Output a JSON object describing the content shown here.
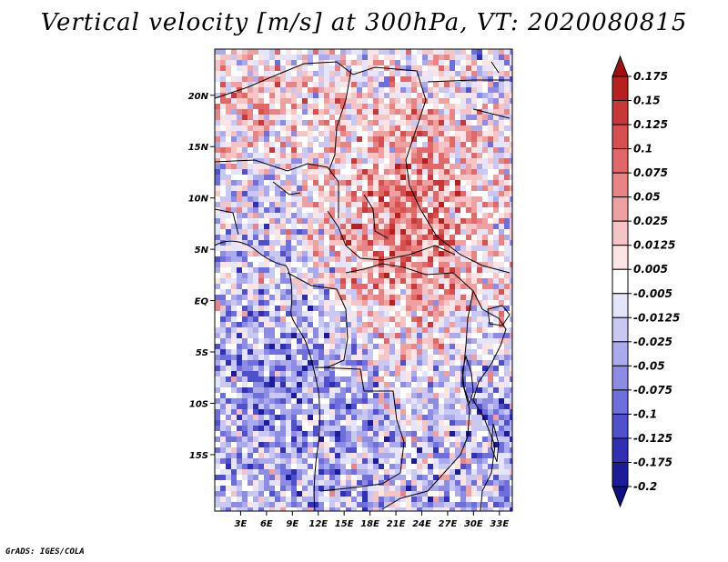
{
  "title": "Vertical velocity [m/s] at 300hPa, VT: 2020080815",
  "credit": "GrADS: IGES/COLA",
  "map": {
    "lon_range": [
      0,
      34.5
    ],
    "lat_range": [
      -20.5,
      24.5
    ],
    "lat_ticks": [
      {
        "value": 20,
        "label": "20N"
      },
      {
        "value": 15,
        "label": "15N"
      },
      {
        "value": 10,
        "label": "10N"
      },
      {
        "value": 5,
        "label": "5N"
      },
      {
        "value": 0,
        "label": "EQ"
      },
      {
        "value": -5,
        "label": "5S"
      },
      {
        "value": -10,
        "label": "10S"
      },
      {
        "value": -15,
        "label": "15S"
      }
    ],
    "lon_ticks": [
      {
        "value": 3,
        "label": "3E"
      },
      {
        "value": 6,
        "label": "6E"
      },
      {
        "value": 9,
        "label": "9E"
      },
      {
        "value": 12,
        "label": "12E"
      },
      {
        "value": 15,
        "label": "15E"
      },
      {
        "value": 18,
        "label": "18E"
      },
      {
        "value": 21,
        "label": "21E"
      },
      {
        "value": 24,
        "label": "24E"
      },
      {
        "value": 27,
        "label": "27E"
      },
      {
        "value": 30,
        "label": "30E"
      },
      {
        "value": 33,
        "label": "33E"
      }
    ]
  },
  "colorbar": {
    "labels": [
      "0.175",
      "0.15",
      "0.125",
      "0.1",
      "0.075",
      "0.05",
      "0.025",
      "0.0125",
      "0.005",
      "-0.005",
      "-0.0125",
      "-0.025",
      "-0.05",
      "-0.075",
      "-0.1",
      "-0.125",
      "-0.175",
      "-0.2"
    ],
    "colors": [
      "#a01010",
      "#b82020",
      "#c83838",
      "#d65050",
      "#e06868",
      "#e88484",
      "#efa0a0",
      "#f5c4c4",
      "#fae4e4",
      "#ffffff",
      "#e4e4fa",
      "#c8c8f2",
      "#aaaaec",
      "#8c8ce4",
      "#6e6edc",
      "#5050cc",
      "#3030b4",
      "#1c1c9a",
      "#10107e"
    ]
  }
}
